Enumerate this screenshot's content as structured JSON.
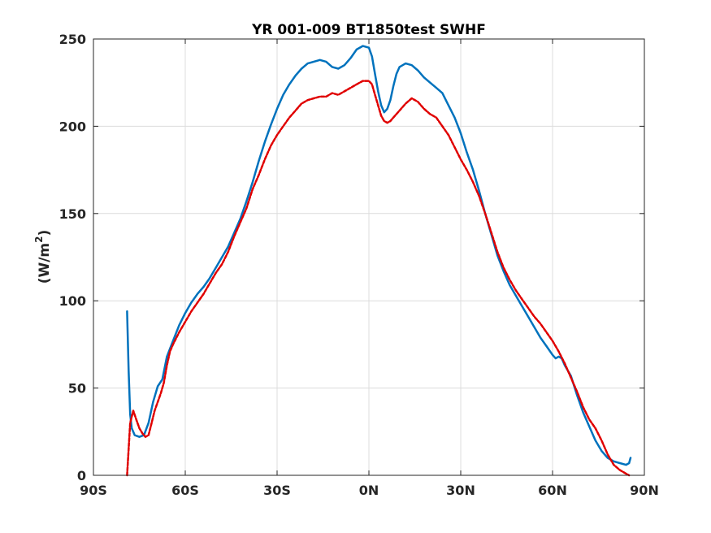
{
  "chart_data": {
    "type": "line",
    "title": "YR 001-009 BT1850test    SWHF",
    "ylabel_main": "(W/m",
    "ylabel_sup": "2",
    "ylabel_end": ")",
    "xlim": [
      -90,
      90
    ],
    "ylim": [
      0,
      250
    ],
    "grid": true,
    "x_ticks": [
      {
        "value": -90,
        "label": "90S"
      },
      {
        "value": -60,
        "label": "60S"
      },
      {
        "value": -30,
        "label": "30S"
      },
      {
        "value": 0,
        "label": "0N"
      },
      {
        "value": 30,
        "label": "30N"
      },
      {
        "value": 60,
        "label": "60N"
      },
      {
        "value": 90,
        "label": "90N"
      }
    ],
    "y_ticks": [
      {
        "value": 0,
        "label": "0"
      },
      {
        "value": 50,
        "label": "50"
      },
      {
        "value": 100,
        "label": "100"
      },
      {
        "value": 150,
        "label": "150"
      },
      {
        "value": 200,
        "label": "200"
      },
      {
        "value": 250,
        "label": "250"
      }
    ],
    "series": [
      {
        "color": "#0072BD",
        "style": "solid",
        "points": [
          [
            -79,
            94
          ],
          [
            -78.5,
            60
          ],
          [
            -78,
            35
          ],
          [
            -77.5,
            27
          ],
          [
            -76.5,
            23
          ],
          [
            -75,
            22
          ],
          [
            -73.5,
            23
          ],
          [
            -72,
            30
          ],
          [
            -70.5,
            42
          ],
          [
            -69,
            51
          ],
          [
            -67.5,
            55
          ],
          [
            -66,
            68
          ],
          [
            -64,
            77
          ],
          [
            -62,
            86
          ],
          [
            -60,
            93
          ],
          [
            -58,
            99
          ],
          [
            -56,
            104
          ],
          [
            -54,
            108
          ],
          [
            -52,
            113
          ],
          [
            -50,
            119
          ],
          [
            -48,
            125
          ],
          [
            -46,
            131
          ],
          [
            -44,
            139
          ],
          [
            -42,
            147
          ],
          [
            -40,
            157
          ],
          [
            -38,
            168
          ],
          [
            -36,
            180
          ],
          [
            -34,
            191
          ],
          [
            -32,
            201
          ],
          [
            -30,
            210
          ],
          [
            -28,
            218
          ],
          [
            -26,
            224
          ],
          [
            -24,
            229
          ],
          [
            -22,
            233
          ],
          [
            -20,
            236
          ],
          [
            -18,
            237
          ],
          [
            -16,
            238
          ],
          [
            -14,
            237
          ],
          [
            -12,
            234
          ],
          [
            -10,
            233
          ],
          [
            -8,
            235
          ],
          [
            -6,
            239
          ],
          [
            -4,
            244
          ],
          [
            -2,
            246
          ],
          [
            0,
            245
          ],
          [
            1,
            240
          ],
          [
            2,
            230
          ],
          [
            3,
            220
          ],
          [
            4,
            212
          ],
          [
            5,
            208
          ],
          [
            6,
            210
          ],
          [
            7,
            215
          ],
          [
            8,
            223
          ],
          [
            9,
            230
          ],
          [
            10,
            234
          ],
          [
            12,
            236
          ],
          [
            14,
            235
          ],
          [
            16,
            232
          ],
          [
            18,
            228
          ],
          [
            20,
            225
          ],
          [
            22,
            222
          ],
          [
            24,
            219
          ],
          [
            26,
            212
          ],
          [
            28,
            205
          ],
          [
            30,
            196
          ],
          [
            32,
            185
          ],
          [
            34,
            175
          ],
          [
            36,
            163
          ],
          [
            38,
            150
          ],
          [
            40,
            138
          ],
          [
            42,
            126
          ],
          [
            44,
            117
          ],
          [
            46,
            109
          ],
          [
            48,
            103
          ],
          [
            50,
            97
          ],
          [
            52,
            91
          ],
          [
            54,
            85
          ],
          [
            56,
            79
          ],
          [
            58,
            74
          ],
          [
            60,
            69
          ],
          [
            61,
            67
          ],
          [
            62,
            68
          ],
          [
            63,
            67
          ],
          [
            64,
            63
          ],
          [
            66,
            57
          ],
          [
            68,
            46
          ],
          [
            70,
            36
          ],
          [
            72,
            28
          ],
          [
            74,
            20
          ],
          [
            76,
            14
          ],
          [
            78,
            10
          ],
          [
            80,
            8
          ],
          [
            82,
            7
          ],
          [
            84,
            6
          ],
          [
            85,
            7
          ],
          [
            85.5,
            10
          ]
        ]
      },
      {
        "color": "#E00000",
        "style": "dashed",
        "points": [
          [
            -79,
            0
          ],
          [
            -78.5,
            15
          ],
          [
            -78,
            30
          ],
          [
            -77,
            37
          ],
          [
            -76,
            32
          ],
          [
            -75,
            27
          ],
          [
            -74,
            24
          ],
          [
            -73,
            22
          ],
          [
            -72,
            23
          ],
          [
            -71,
            30
          ],
          [
            -70,
            37
          ],
          [
            -69,
            42
          ],
          [
            -68,
            47
          ],
          [
            -67,
            53
          ],
          [
            -66,
            63
          ],
          [
            -65,
            71
          ],
          [
            -64,
            75
          ],
          [
            -62,
            82
          ],
          [
            -60,
            88
          ],
          [
            -58,
            94
          ],
          [
            -56,
            99
          ],
          [
            -54,
            104
          ],
          [
            -52,
            110
          ],
          [
            -50,
            116
          ],
          [
            -48,
            121
          ],
          [
            -46,
            128
          ],
          [
            -44,
            137
          ],
          [
            -42,
            145
          ],
          [
            -40,
            153
          ],
          [
            -38,
            164
          ],
          [
            -36,
            172
          ],
          [
            -34,
            181
          ],
          [
            -32,
            189
          ],
          [
            -30,
            195
          ],
          [
            -28,
            200
          ],
          [
            -26,
            205
          ],
          [
            -24,
            209
          ],
          [
            -22,
            213
          ],
          [
            -20,
            215
          ],
          [
            -18,
            216
          ],
          [
            -16,
            217
          ],
          [
            -14,
            217
          ],
          [
            -12,
            219
          ],
          [
            -10,
            218
          ],
          [
            -8,
            220
          ],
          [
            -6,
            222
          ],
          [
            -4,
            224
          ],
          [
            -2,
            226
          ],
          [
            0,
            226
          ],
          [
            1,
            224
          ],
          [
            2,
            218
          ],
          [
            3,
            212
          ],
          [
            4,
            206
          ],
          [
            5,
            203
          ],
          [
            6,
            202
          ],
          [
            7,
            203
          ],
          [
            8,
            205
          ],
          [
            10,
            209
          ],
          [
            12,
            213
          ],
          [
            14,
            216
          ],
          [
            16,
            214
          ],
          [
            18,
            210
          ],
          [
            20,
            207
          ],
          [
            22,
            205
          ],
          [
            24,
            200
          ],
          [
            26,
            195
          ],
          [
            28,
            188
          ],
          [
            30,
            181
          ],
          [
            32,
            175
          ],
          [
            34,
            168
          ],
          [
            36,
            160
          ],
          [
            38,
            150
          ],
          [
            40,
            139
          ],
          [
            42,
            128
          ],
          [
            44,
            119
          ],
          [
            46,
            112
          ],
          [
            48,
            106
          ],
          [
            50,
            101
          ],
          [
            52,
            96
          ],
          [
            54,
            91
          ],
          [
            56,
            87
          ],
          [
            58,
            82
          ],
          [
            60,
            77
          ],
          [
            62,
            71
          ],
          [
            64,
            64
          ],
          [
            66,
            56
          ],
          [
            68,
            48
          ],
          [
            70,
            39
          ],
          [
            72,
            32
          ],
          [
            74,
            27
          ],
          [
            76,
            20
          ],
          [
            78,
            12
          ],
          [
            80,
            6
          ],
          [
            82,
            3
          ],
          [
            84,
            1
          ],
          [
            85,
            0
          ]
        ]
      }
    ]
  }
}
